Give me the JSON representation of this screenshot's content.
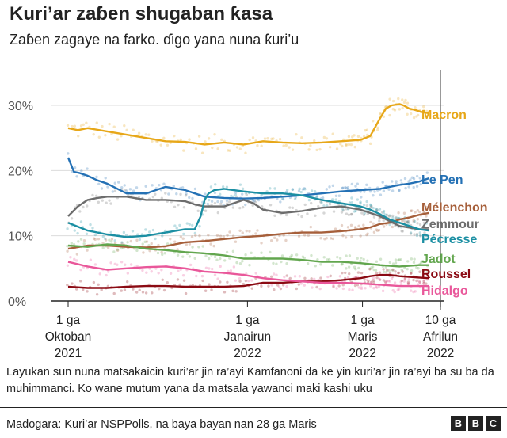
{
  "header": {
    "title": "Kuri’ar zaɓen shugaban ƙasa",
    "subtitle": "Zaɓen zagaye na farko. ɗigo yana nuna ƙuri’u"
  },
  "chart_data": {
    "type": "line",
    "title": "Kuri’ar zaɓen shugaban ƙasa",
    "subtitle": "Zaɓen zagaye na farko. ɗigo yana nuna ƙuri’u",
    "ylim": [
      0,
      32
    ],
    "y_ticks": [
      0,
      10,
      20,
      30
    ],
    "y_tick_labels": [
      "0%",
      "10%",
      "20%",
      "30%"
    ],
    "x_domain": [
      0,
      185
    ],
    "x_ticks": [
      {
        "x": 0,
        "lines": [
          "1 ga",
          "Oktoban",
          "2021"
        ]
      },
      {
        "x": 92,
        "lines": [
          "1 ga",
          "Janairun",
          "2022"
        ]
      },
      {
        "x": 151,
        "lines": [
          "1 ga",
          "Maris",
          "2022"
        ]
      },
      {
        "x": 191,
        "lines": [
          "10 ga",
          "Afrilun",
          "2022"
        ]
      }
    ],
    "election_day_x": 191,
    "x_unit": "days since 1 Oct 2021",
    "series": [
      {
        "name": "Macron",
        "color": "#e7a718",
        "x": [
          0,
          5,
          10,
          20,
          30,
          40,
          50,
          60,
          70,
          80,
          90,
          100,
          110,
          120,
          130,
          140,
          150,
          155,
          160,
          163,
          166,
          170,
          172,
          175,
          178,
          181,
          185
        ],
        "y": [
          26.5,
          26.2,
          26.5,
          26,
          25.5,
          25,
          24.5,
          24.4,
          24,
          24.3,
          24,
          24.5,
          24.3,
          24.2,
          24.3,
          24.5,
          24.7,
          25.3,
          28,
          29.5,
          30,
          30.2,
          30,
          29.5,
          29.3,
          29,
          28.8
        ]
      },
      {
        "name": "Le Pen",
        "color": "#2471b5",
        "x": [
          0,
          3,
          6,
          10,
          15,
          20,
          30,
          40,
          50,
          60,
          70,
          80,
          90,
          100,
          110,
          120,
          130,
          140,
          150,
          160,
          170,
          175,
          180,
          185
        ],
        "y": [
          22,
          19.8,
          19.6,
          19.2,
          18.5,
          18,
          16.5,
          16.5,
          17.5,
          17,
          16,
          15.8,
          15.7,
          15.8,
          16,
          16.2,
          16.5,
          16.8,
          17,
          17.2,
          17.8,
          18,
          18.3,
          18.8
        ]
      },
      {
        "name": "Mélenchon",
        "color": "#a65f3a",
        "x": [
          0,
          10,
          20,
          30,
          40,
          50,
          60,
          70,
          80,
          90,
          100,
          110,
          120,
          130,
          140,
          150,
          155,
          160,
          165,
          170,
          175,
          180,
          185
        ],
        "y": [
          8,
          8.5,
          8.5,
          8.3,
          8.2,
          8.4,
          9,
          9.2,
          9.5,
          9.8,
          10,
          10.3,
          10.5,
          10.5,
          10.7,
          11,
          11.3,
          11.8,
          12,
          12.5,
          12.8,
          13.2,
          13.5
        ]
      },
      {
        "name": "Zemmour",
        "color": "#6d6d6d",
        "x": [
          0,
          5,
          10,
          15,
          20,
          25,
          30,
          40,
          50,
          60,
          65,
          70,
          80,
          90,
          95,
          100,
          110,
          120,
          130,
          140,
          150,
          160,
          170,
          180,
          185
        ],
        "y": [
          13,
          14.5,
          15.5,
          15.8,
          16,
          16,
          16,
          15.5,
          15.5,
          15.3,
          14.8,
          14.5,
          14.5,
          15.5,
          15,
          14,
          13.5,
          13.8,
          14.3,
          14.5,
          14,
          13,
          11.5,
          11,
          11
        ]
      },
      {
        "name": "Pécresse",
        "color": "#1b8fa3",
        "x": [
          0,
          10,
          20,
          30,
          40,
          50,
          60,
          65,
          68,
          70,
          72,
          75,
          80,
          90,
          100,
          110,
          120,
          130,
          140,
          150,
          155,
          160,
          165,
          170,
          175,
          180,
          185
        ],
        "y": [
          12,
          10.8,
          10.2,
          9.8,
          10,
          10.5,
          11,
          11,
          13,
          15.5,
          16.5,
          17,
          17.2,
          16.8,
          16.5,
          16.5,
          16.2,
          15.5,
          15,
          14.5,
          14,
          13.3,
          12.5,
          12,
          11.5,
          11,
          10.8
        ]
      },
      {
        "name": "Jadot",
        "color": "#62a64e",
        "x": [
          0,
          10,
          20,
          30,
          40,
          50,
          60,
          70,
          80,
          90,
          100,
          110,
          120,
          130,
          140,
          150,
          160,
          170,
          180,
          185
        ],
        "y": [
          8.5,
          8.3,
          8.7,
          8.5,
          8,
          7.8,
          7.5,
          7.3,
          7,
          6.5,
          6.5,
          6.5,
          6.3,
          6,
          6,
          5.8,
          5.5,
          5.3,
          5.5,
          5.5
        ]
      },
      {
        "name": "Roussel",
        "color": "#8b0a13",
        "x": [
          0,
          10,
          20,
          30,
          40,
          50,
          60,
          70,
          80,
          90,
          100,
          110,
          120,
          130,
          140,
          150,
          155,
          160,
          165,
          170,
          175,
          180,
          185
        ],
        "y": [
          2.2,
          2,
          2,
          2.2,
          2.3,
          2.3,
          2.2,
          2.2,
          2.2,
          2.3,
          2.8,
          2.8,
          3,
          3,
          3.2,
          3.5,
          3.8,
          4,
          4,
          3.8,
          3.7,
          3.6,
          3.5
        ]
      },
      {
        "name": "Hidalgo",
        "color": "#e9579a",
        "x": [
          0,
          10,
          20,
          30,
          40,
          50,
          60,
          70,
          80,
          90,
          100,
          110,
          120,
          130,
          140,
          150,
          160,
          170,
          180,
          185
        ],
        "y": [
          6,
          5.3,
          4.8,
          5,
          5.2,
          5.3,
          5,
          4.5,
          4.3,
          4,
          3.5,
          3.2,
          3,
          2.8,
          2.8,
          2.7,
          2.5,
          2.3,
          2.3,
          2.3
        ]
      }
    ],
    "legend": [
      {
        "name": "Macron",
        "label": "Macron"
      },
      {
        "name": "Le Pen",
        "label": "Le Pen"
      },
      {
        "name": "Mélenchon",
        "label": "Mélenchon"
      },
      {
        "name": "Zemmour",
        "label": "Zemmour"
      },
      {
        "name": "Pécresse",
        "label": "Pécresse"
      },
      {
        "name": "Jadot",
        "label": "Jadot"
      },
      {
        "name": "Roussel",
        "label": "Roussel"
      },
      {
        "name": "Hidalgo",
        "label": "Hidalgo"
      }
    ],
    "legend_placement": "right, labels at line ends"
  },
  "note": "Layukan sun nuna matsakaicin kuri’ar jin ra’ayi Kamfanoni da ke yin kuri’ar jin ra’ayi ba su ba da muhimmanci. Ko wane mutum yana da matsala yawanci maki kashi uku",
  "footer": {
    "source": "Madogara: Kuri’ar NSPPolls, na baya bayan nan 28 ga Maris",
    "logo_letters": [
      "B",
      "B",
      "C"
    ]
  }
}
